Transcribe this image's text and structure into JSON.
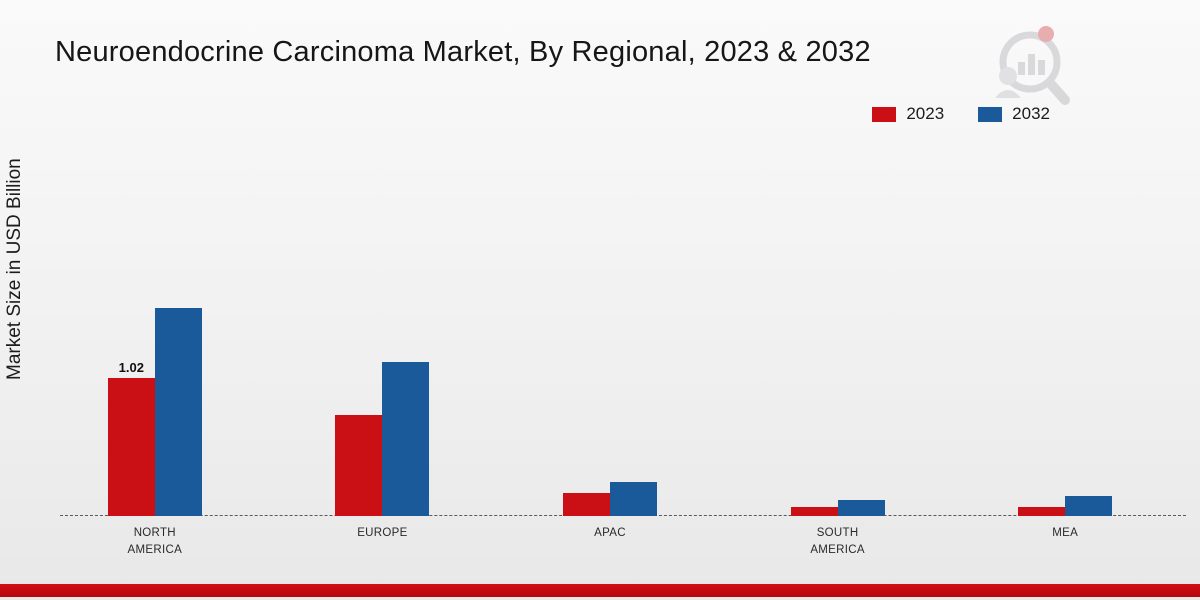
{
  "title": "Neuroendocrine Carcinoma Market, By Regional, 2023 & 2032",
  "y_axis_label": "Market Size in USD Billion",
  "legend": [
    {
      "label": "2023",
      "color": "#cb1015"
    },
    {
      "label": "2032",
      "color": "#1b5a9a"
    }
  ],
  "chart_data": {
    "type": "bar",
    "title": "Neuroendocrine Carcinoma Market, By Regional, 2023 & 2032",
    "xlabel": "",
    "ylabel": "Market Size in USD Billion",
    "categories": [
      "NORTH AMERICA",
      "EUROPE",
      "APAC",
      "SOUTH AMERICA",
      "MEA"
    ],
    "series": [
      {
        "name": "2023",
        "color": "#cb1015",
        "values": [
          1.02,
          0.75,
          0.17,
          0.07,
          0.07
        ]
      },
      {
        "name": "2032",
        "color": "#1b5a9a",
        "values": [
          1.54,
          1.14,
          0.25,
          0.12,
          0.15
        ]
      }
    ],
    "annotations": [
      {
        "category_index": 0,
        "series_index": 0,
        "text": "1.02"
      }
    ],
    "ylim": [
      0,
      1.7
    ],
    "grid": false,
    "legend_position": "top-right",
    "baseline_style": "dashed"
  },
  "footer_accent_color": "#c00b10",
  "watermark_icon": "magnifier-analytics-logo"
}
